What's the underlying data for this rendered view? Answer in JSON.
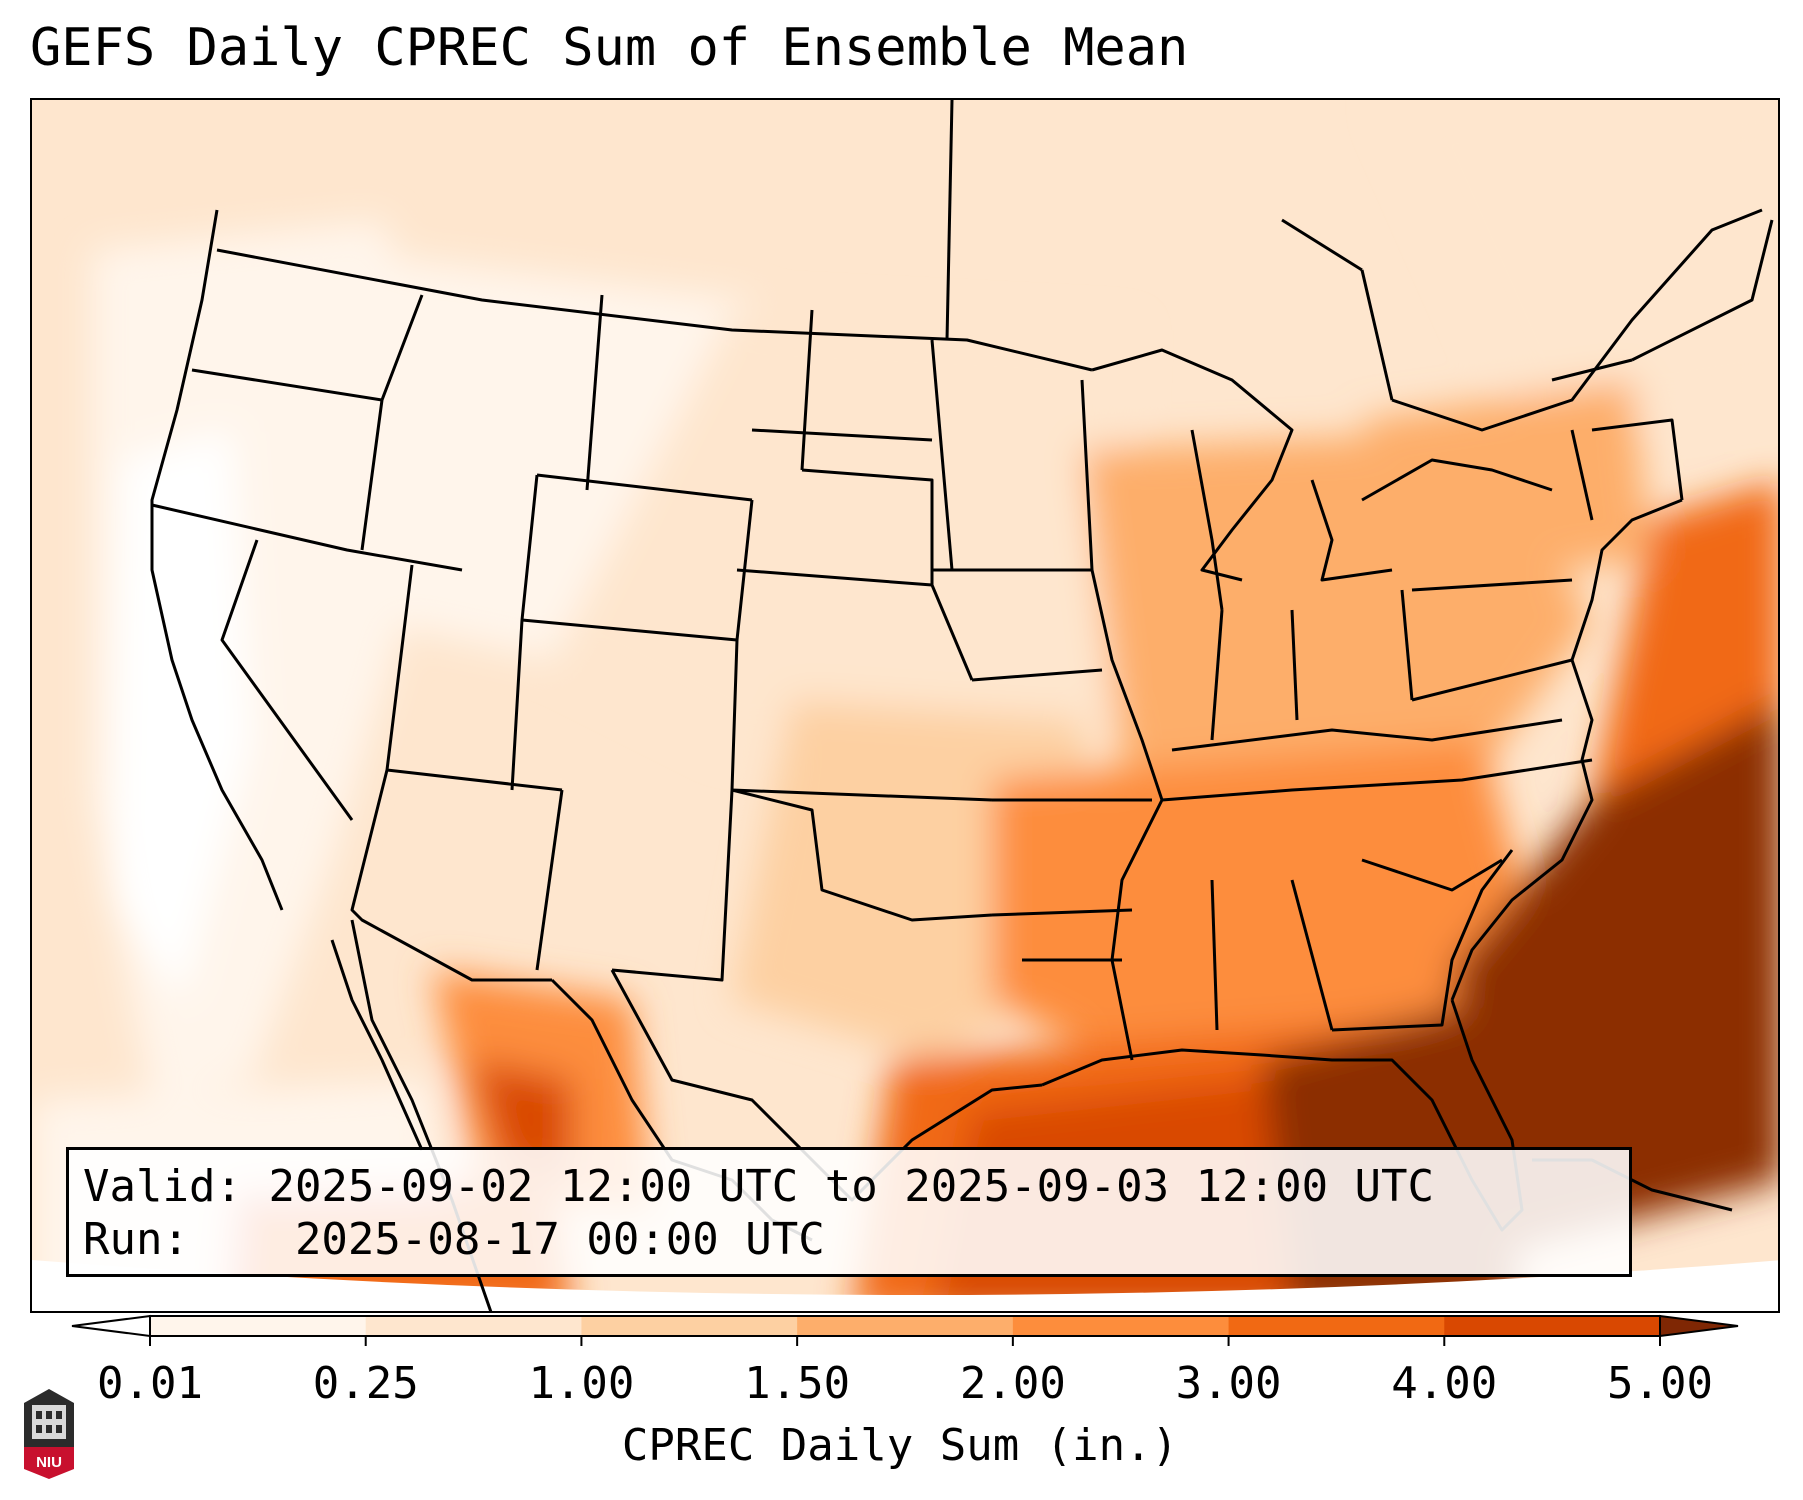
{
  "title": "GEFS Daily CPREC Sum of Ensemble Mean",
  "info": {
    "valid_label": "Valid:",
    "valid_value": "2025-09-02 12:00 UTC to 2025-09-03 12:00 UTC",
    "run_label": "Run:",
    "run_value": "2025-08-17 00:00 UTC"
  },
  "colorbar": {
    "label": "CPREC Daily Sum (in.)",
    "ticks": [
      "0.01",
      "0.25",
      "1.00",
      "1.50",
      "2.00",
      "3.00",
      "4.00",
      "5.00"
    ],
    "colors": [
      "#fff5eb",
      "#fee6ce",
      "#fdd0a2",
      "#fdae6b",
      "#fd8d3c",
      "#f16913",
      "#d94801",
      "#8c2d04"
    ],
    "under_color": "#ffffff",
    "over_color": "#7f2704"
  },
  "map": {
    "region": "Contiguous United States",
    "precip_regions": [
      {
        "area": "Pacific Northwest",
        "level": "0.01"
      },
      {
        "area": "Great Basin",
        "level": "0.01"
      },
      {
        "area": "Northern Plains",
        "level": "0.25"
      },
      {
        "area": "Southern Plains",
        "level": "1.00"
      },
      {
        "area": "Ohio Valley",
        "level": "1.50"
      },
      {
        "area": "Southeast",
        "level": "2.00"
      },
      {
        "area": "Gulf of Mexico",
        "level": "4.00"
      },
      {
        "area": "Western Atlantic",
        "level": "5.00"
      }
    ]
  },
  "logo": {
    "text": "NIU",
    "colors": [
      "#c8102e",
      "#000000"
    ]
  }
}
